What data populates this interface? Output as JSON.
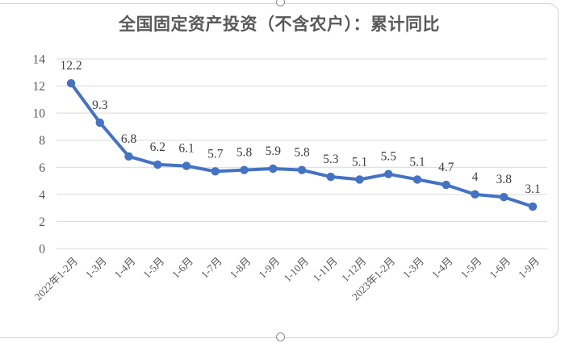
{
  "chart_data": {
    "type": "line",
    "title": "全国固定资产投资（不含农户）：累计同比",
    "categories": [
      "2022年1-2月",
      "1-3月",
      "1-4月",
      "1-5月",
      "1-6月",
      "1-7月",
      "1-8月",
      "1-9月",
      "1-10月",
      "1-11月",
      "1-12月",
      "2023年1-2月",
      "1-3月",
      "1-4月",
      "1-5月",
      "1-6月",
      "1-9月"
    ],
    "values": [
      12.2,
      9.3,
      6.8,
      6.2,
      6.1,
      5.7,
      5.8,
      5.9,
      5.8,
      5.3,
      5.1,
      5.5,
      5.1,
      4.7,
      4,
      3.8,
      3.1
    ],
    "data_labels": [
      "12.2",
      "9.3",
      "6.8",
      "6.2",
      "6.1",
      "5.7",
      "5.8",
      "5.9",
      "5.8",
      "5.3",
      "5.1",
      "5.5",
      "5.1",
      "4.7",
      "4",
      "3.8",
      "3.1"
    ],
    "y_ticks": [
      0,
      2,
      4,
      6,
      8,
      10,
      12,
      14
    ],
    "ylim": [
      0,
      14
    ],
    "grid": true,
    "legend_position": "none",
    "series_color": "#4472C4",
    "gridline_color": "#D9D9D9",
    "data_label_color": "#404040",
    "axis_label_color": "#595959",
    "title_color": "#595959"
  }
}
